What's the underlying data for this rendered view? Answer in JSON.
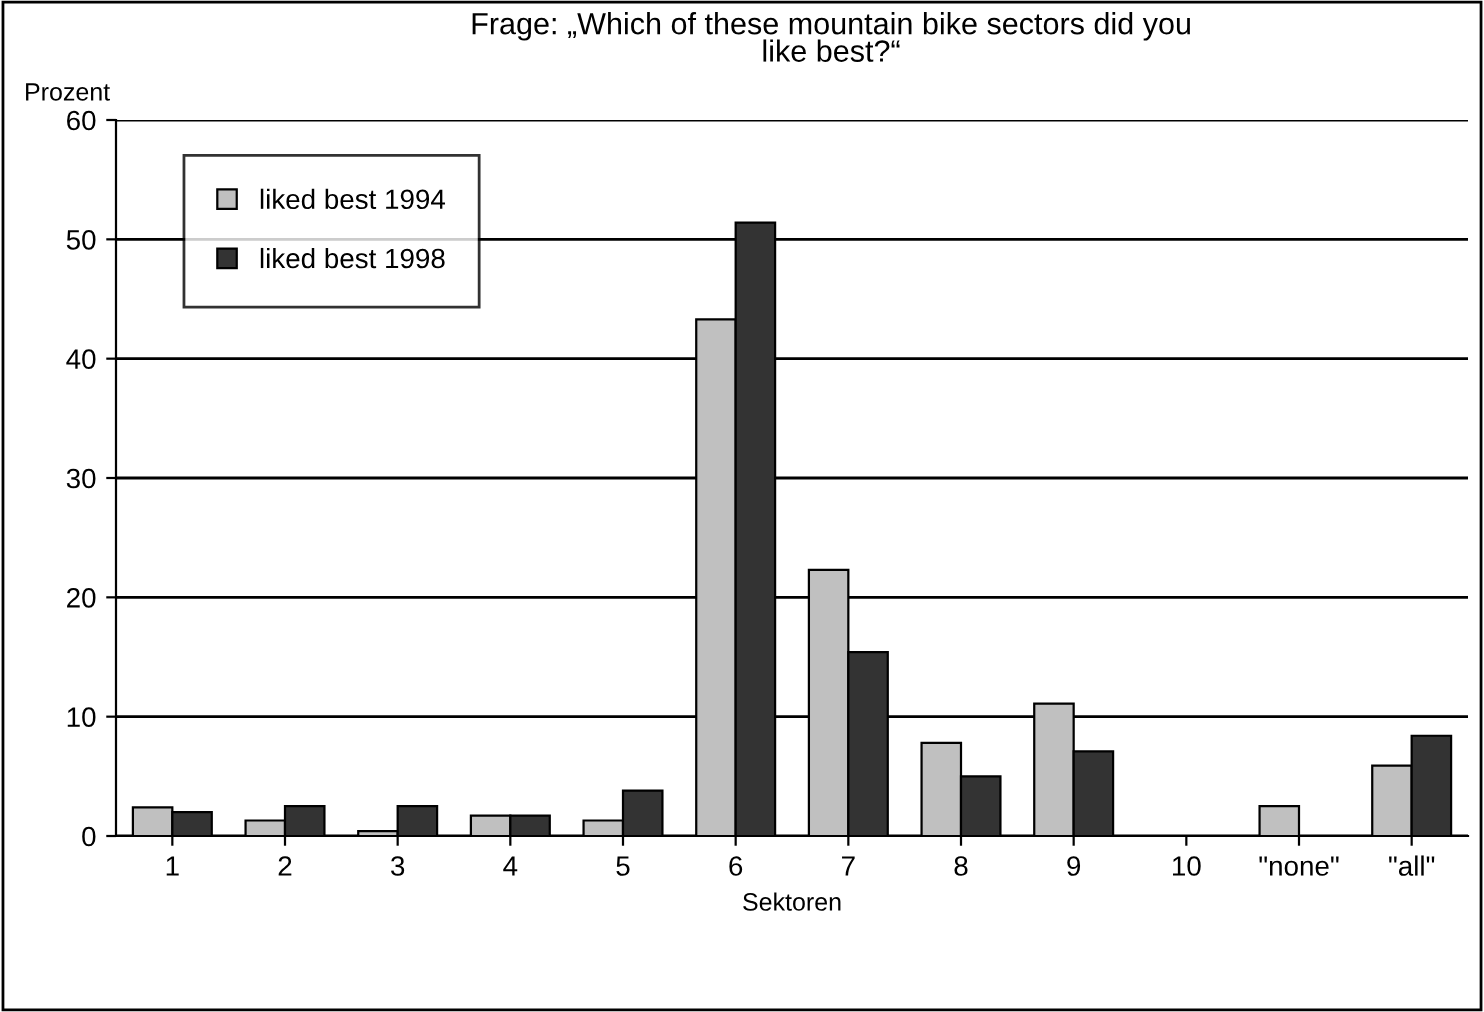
{
  "chart_data": {
    "type": "bar",
    "title": "Frage: „Which of these mountain bike sectors did you\nlike best?“",
    "ylabel": "Prozent",
    "xlabel": "Sektoren",
    "categories": [
      "1",
      "2",
      "3",
      "4",
      "5",
      "6",
      "7",
      "8",
      "9",
      "10",
      "\"none\"",
      "\"all\""
    ],
    "series": [
      {
        "name": "liked best 1994",
        "color": "#c0c0c0",
        "values": [
          2.4,
          1.3,
          0.4,
          1.7,
          1.3,
          43.3,
          22.3,
          7.8,
          11.1,
          null,
          2.5,
          5.9
        ]
      },
      {
        "name": "liked best 1998",
        "color": "#333333",
        "values": [
          2.0,
          2.5,
          2.5,
          1.7,
          3.8,
          51.4,
          15.4,
          5.0,
          7.1,
          null,
          null,
          8.4
        ]
      }
    ],
    "ylim": [
      0,
      60
    ],
    "yticks": [
      0,
      10,
      20,
      30,
      40,
      50,
      60
    ],
    "grid": "y",
    "legend": "top left"
  }
}
